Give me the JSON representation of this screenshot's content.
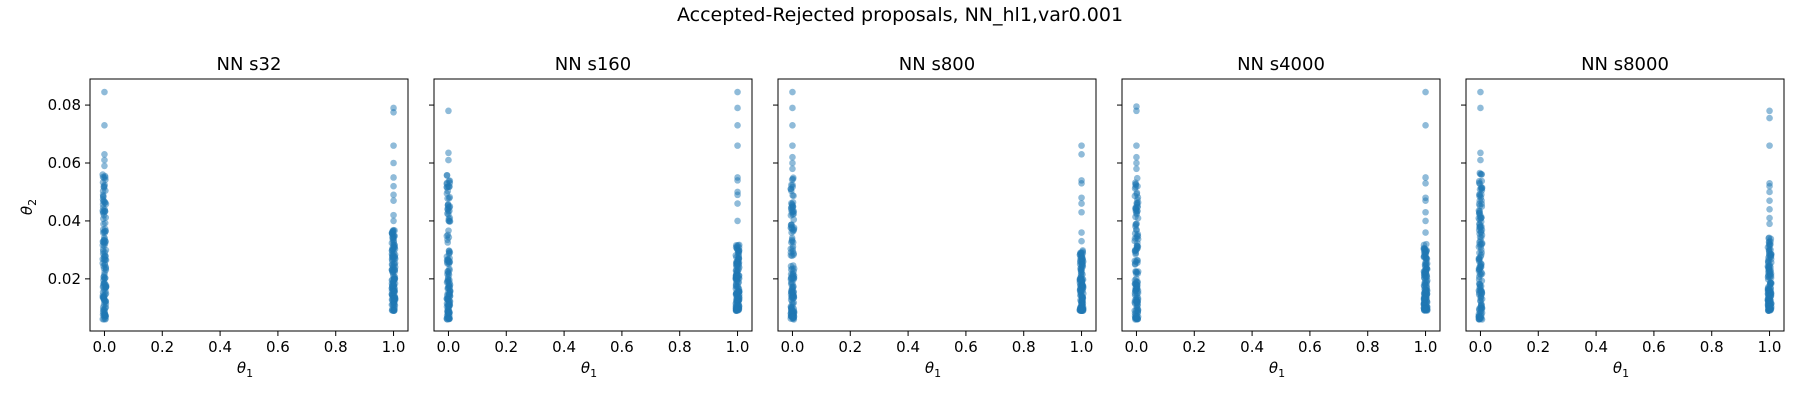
{
  "figure": {
    "suptitle": "Accepted-Rejected proposals, NN_hl1,var0.001"
  },
  "chart_data": [
    {
      "type": "scatter",
      "title": "NN s32",
      "xlabel": "θ1",
      "ylabel": "θ2",
      "xlim": [
        -0.05,
        1.05
      ],
      "ylim": [
        0.002,
        0.089
      ],
      "x_ticks": [
        0.0,
        0.2,
        0.4,
        0.6,
        0.8,
        1.0
      ],
      "x_tick_labels": [
        "0.0",
        "0.2",
        "0.4",
        "0.6",
        "0.8",
        "1.0"
      ],
      "y_ticks": [
        0.02,
        0.04,
        0.06,
        0.08
      ],
      "y_tick_labels": [
        "0.02",
        "0.04",
        "0.06",
        "0.08"
      ],
      "color": "#1f77b4",
      "clusters": [
        {
          "x": 0.0,
          "dense_range": [
            0.006,
            0.056
          ],
          "outliers": [
            0.0845,
            0.073,
            0.063,
            0.061,
            0.059
          ]
        },
        {
          "x": 1.0,
          "dense_range": [
            0.009,
            0.037
          ],
          "outliers": [
            0.079,
            0.0775,
            0.066,
            0.06,
            0.055,
            0.052,
            0.049,
            0.047,
            0.042,
            0.04
          ]
        }
      ]
    },
    {
      "type": "scatter",
      "title": "NN s160",
      "xlabel": "θ1",
      "ylabel": "",
      "xlim": [
        -0.05,
        1.05
      ],
      "ylim": [
        0.002,
        0.089
      ],
      "x_ticks": [
        0.0,
        0.2,
        0.4,
        0.6,
        0.8,
        1.0
      ],
      "x_tick_labels": [
        "0.0",
        "0.2",
        "0.4",
        "0.6",
        "0.8",
        "1.0"
      ],
      "y_ticks": [
        0.02,
        0.04,
        0.06,
        0.08
      ],
      "y_tick_labels": [],
      "color": "#1f77b4",
      "clusters": [
        {
          "x": 0.0,
          "dense_range": [
            0.006,
            0.057
          ],
          "outliers": [
            0.078,
            0.0635,
            0.061
          ]
        },
        {
          "x": 1.0,
          "dense_range": [
            0.009,
            0.032
          ],
          "outliers": [
            0.0845,
            0.079,
            0.073,
            0.066,
            0.055,
            0.054,
            0.05,
            0.049,
            0.046,
            0.04
          ]
        }
      ]
    },
    {
      "type": "scatter",
      "title": "NN s800",
      "xlabel": "θ1",
      "ylabel": "",
      "xlim": [
        -0.05,
        1.05
      ],
      "ylim": [
        0.002,
        0.089
      ],
      "x_ticks": [
        0.0,
        0.2,
        0.4,
        0.6,
        0.8,
        1.0
      ],
      "x_tick_labels": [
        "0.0",
        "0.2",
        "0.4",
        "0.6",
        "0.8",
        "1.0"
      ],
      "y_ticks": [
        0.02,
        0.04,
        0.06,
        0.08
      ],
      "y_tick_labels": [],
      "color": "#1f77b4",
      "clusters": [
        {
          "x": 0.0,
          "dense_range": [
            0.006,
            0.055
          ],
          "outliers": [
            0.0845,
            0.079,
            0.073,
            0.066,
            0.062,
            0.06,
            0.058
          ]
        },
        {
          "x": 1.0,
          "dense_range": [
            0.009,
            0.03
          ],
          "outliers": [
            0.066,
            0.063,
            0.054,
            0.053,
            0.048,
            0.046,
            0.043,
            0.036,
            0.033
          ]
        }
      ]
    },
    {
      "type": "scatter",
      "title": "NN s4000",
      "xlabel": "θ1",
      "ylabel": "",
      "xlim": [
        -0.05,
        1.05
      ],
      "ylim": [
        0.002,
        0.089
      ],
      "x_ticks": [
        0.0,
        0.2,
        0.4,
        0.6,
        0.8,
        1.0
      ],
      "x_tick_labels": [
        "0.0",
        "0.2",
        "0.4",
        "0.6",
        "0.8",
        "1.0"
      ],
      "y_ticks": [
        0.02,
        0.04,
        0.06,
        0.08
      ],
      "y_tick_labels": [],
      "color": "#1f77b4",
      "clusters": [
        {
          "x": 0.0,
          "dense_range": [
            0.006,
            0.055
          ],
          "outliers": [
            0.0795,
            0.078,
            0.066,
            0.062,
            0.06,
            0.058
          ]
        },
        {
          "x": 1.0,
          "dense_range": [
            0.009,
            0.032
          ],
          "outliers": [
            0.0845,
            0.073,
            0.055,
            0.053,
            0.048,
            0.047,
            0.043,
            0.04,
            0.036
          ]
        }
      ]
    },
    {
      "type": "scatter",
      "title": "NN s8000",
      "xlabel": "θ1",
      "ylabel": "",
      "xlim": [
        -0.05,
        1.05
      ],
      "ylim": [
        0.002,
        0.089
      ],
      "x_ticks": [
        0.0,
        0.2,
        0.4,
        0.6,
        0.8,
        1.0
      ],
      "x_tick_labels": [
        "0.0",
        "0.2",
        "0.4",
        "0.6",
        "0.8",
        "1.0"
      ],
      "y_ticks": [
        0.02,
        0.04,
        0.06,
        0.08
      ],
      "y_tick_labels": [],
      "color": "#1f77b4",
      "clusters": [
        {
          "x": 0.0,
          "dense_range": [
            0.006,
            0.057
          ],
          "outliers": [
            0.0845,
            0.079,
            0.0635,
            0.061
          ]
        },
        {
          "x": 1.0,
          "dense_range": [
            0.009,
            0.035
          ],
          "outliers": [
            0.078,
            0.0755,
            0.066,
            0.053,
            0.052,
            0.05,
            0.047,
            0.044,
            0.041,
            0.039
          ]
        }
      ]
    }
  ]
}
